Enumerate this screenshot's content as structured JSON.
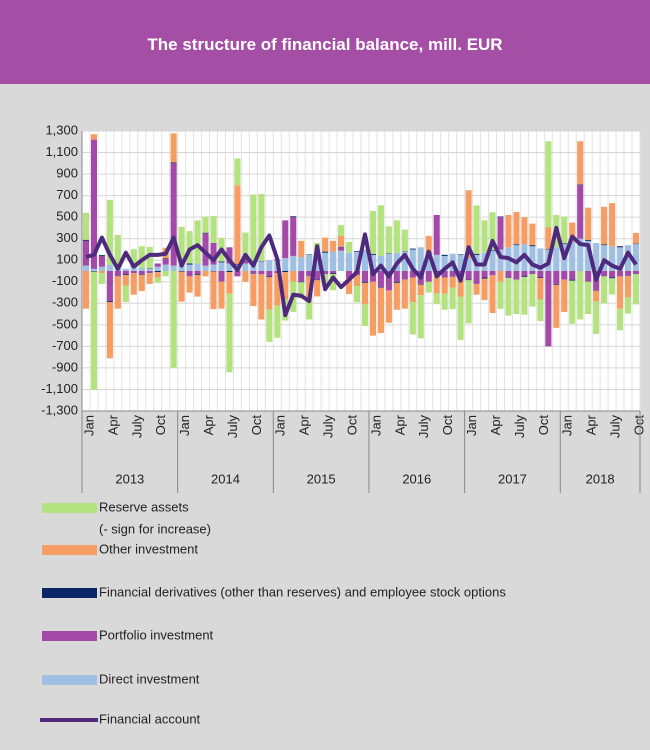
{
  "chart_data": {
    "type": "stacked_bar_line",
    "title": "The structure of financial balance, mill. EUR",
    "categories": [
      "Jan",
      null,
      null,
      "Apr",
      null,
      null,
      "July",
      null,
      null,
      "Oct",
      null,
      null,
      "Jan",
      null,
      null,
      "Apr",
      null,
      null,
      "July",
      null,
      null,
      "Oct",
      null,
      null,
      "Jan",
      null,
      null,
      "Apr",
      null,
      null,
      "July",
      null,
      null,
      "Oct",
      null,
      null,
      "Jan",
      null,
      null,
      "Apr",
      null,
      null,
      "July",
      null,
      null,
      "Oct",
      null,
      null,
      "Jan",
      null,
      null,
      "Apr",
      null,
      null,
      "July",
      null,
      null,
      "Oct",
      null,
      null,
      "Jan",
      null,
      null,
      "Apr",
      null,
      null,
      "July",
      null,
      null,
      "Oct"
    ],
    "years": [
      "2013",
      "2014",
      "2015",
      "2016",
      "2017",
      "2018"
    ],
    "ylim": [
      -1300,
      1300
    ],
    "yticks": [
      {
        "value": 1300,
        "label": "1,300"
      },
      {
        "value": 1100,
        "label": "1,100"
      },
      900,
      700,
      500,
      300,
      100,
      -100,
      -300,
      -500,
      -700,
      -900,
      {
        "value": -1100,
        "label": "-1,100"
      },
      {
        "value": -1300,
        "label": "-1,300"
      }
    ],
    "grid": true,
    "series": [
      {
        "name": "Reserve assets",
        "legend_note": "(- sign for increase)",
        "color": "#b3e27e",
        "kind": "bar",
        "values": [
          250,
          -1100,
          -100,
          600,
          300,
          -150,
          150,
          200,
          200,
          -50,
          -50,
          -900,
          300,
          300,
          400,
          150,
          250,
          220,
          -730,
          250,
          250,
          630,
          620,
          -300,
          -300,
          -200,
          -280,
          -150,
          -200,
          100,
          -100,
          -150,
          100,
          100,
          -150,
          -200,
          400,
          470,
          250,
          300,
          200,
          -300,
          -400,
          -100,
          -100,
          -150,
          -200,
          -400,
          -400,
          450,
          300,
          350,
          -250,
          -350,
          -320,
          -350,
          -300,
          -200,
          800,
          300,
          250,
          -400,
          -450,
          -300,
          -300,
          -250,
          -150,
          -200,
          -150,
          -280
        ]
      },
      {
        "name": "Other investment",
        "color": "#f59d62",
        "kind": "bar",
        "values": [
          -350,
          50,
          -20,
          -520,
          -300,
          -100,
          -200,
          -150,
          -100,
          -50,
          100,
          270,
          -280,
          -150,
          -200,
          -50,
          -350,
          -250,
          -200,
          730,
          -100,
          -300,
          -420,
          -300,
          -300,
          -250,
          -100,
          150,
          -200,
          -150,
          130,
          100,
          100,
          -150,
          -100,
          -200,
          -500,
          -420,
          -300,
          -250,
          -270,
          -230,
          -100,
          150,
          -200,
          -150,
          -100,
          -200,
          630,
          -100,
          -200,
          -350,
          -100,
          300,
          300,
          250,
          200,
          -200,
          200,
          -400,
          -300,
          180,
          400,
          300,
          -100,
          350,
          400,
          -300,
          -200,
          100
        ]
      },
      {
        "name": "Financial derivatives (other than reserves) and employee stock options",
        "color": "#0b2566",
        "kind": "bar",
        "values": [
          10,
          -5,
          8,
          -10,
          5,
          -8,
          12,
          -6,
          4,
          -10,
          6,
          8,
          -5,
          10,
          -8,
          6,
          -4,
          8,
          -10,
          5,
          7,
          -6,
          4,
          -8,
          6,
          -10,
          8,
          -5,
          4,
          -6,
          10,
          -8,
          5,
          -4,
          6,
          -10,
          8,
          -6,
          5,
          -10,
          4,
          8,
          -5,
          6,
          -8,
          10,
          -4,
          5,
          -6,
          8,
          -10,
          5,
          6,
          -4,
          8,
          -6,
          10,
          -5,
          4,
          -8,
          6,
          -10,
          5,
          8,
          -4,
          6,
          -8,
          10,
          -5,
          4
        ]
      },
      {
        "name": "Portfolio investment",
        "color": "#a34aa8",
        "kind": "bar",
        "values": [
          230,
          1200,
          100,
          -280,
          -50,
          -30,
          -20,
          -30,
          -20,
          30,
          50,
          950,
          30,
          -50,
          -30,
          300,
          200,
          -100,
          150,
          -50,
          30,
          -20,
          -30,
          -50,
          -20,
          350,
          360,
          -100,
          -50,
          -80,
          -30,
          -20,
          30,
          -60,
          -40,
          -100,
          -100,
          -150,
          -180,
          -100,
          -80,
          -60,
          -120,
          -100,
          370,
          -60,
          -50,
          -40,
          -80,
          -120,
          -60,
          -40,
          300,
          -60,
          -80,
          -50,
          -30,
          -60,
          -700,
          -120,
          -80,
          -80,
          500,
          -100,
          -180,
          -50,
          -60,
          -50,
          -40,
          -30
        ]
      },
      {
        "name": "Direct investment",
        "color": "#9fbfe3",
        "kind": "bar",
        "values": [
          50,
          20,
          40,
          60,
          30,
          20,
          40,
          30,
          20,
          40,
          60,
          50,
          80,
          60,
          70,
          50,
          60,
          80,
          70,
          60,
          70,
          80,
          90,
          100,
          100,
          120,
          140,
          130,
          150,
          160,
          170,
          180,
          190,
          170,
          180,
          200,
          150,
          140,
          160,
          170,
          180,
          200,
          220,
          170,
          150,
          140,
          160,
          150,
          120,
          150,
          170,
          190,
          200,
          220,
          240,
          250,
          230,
          210,
          200,
          220,
          250,
          270,
          300,
          280,
          260,
          240,
          230,
          220,
          240,
          250
        ]
      },
      {
        "name": "Financial account",
        "color": "#4e2a7e",
        "kind": "line",
        "values": [
          130,
          150,
          310,
          150,
          20,
          170,
          40,
          100,
          150,
          150,
          160,
          310,
          50,
          200,
          240,
          170,
          100,
          200,
          100,
          10,
          150,
          50,
          220,
          330,
          110,
          -410,
          -220,
          -230,
          -280,
          230,
          -170,
          -60,
          -150,
          -80,
          -10,
          340,
          -30,
          50,
          -50,
          70,
          150,
          20,
          -60,
          180,
          -50,
          20,
          80,
          -90,
          220,
          60,
          60,
          280,
          130,
          120,
          80,
          150,
          60,
          30,
          70,
          400,
          120,
          320,
          250,
          240,
          -80,
          100,
          50,
          20,
          170,
          60
        ]
      }
    ]
  }
}
